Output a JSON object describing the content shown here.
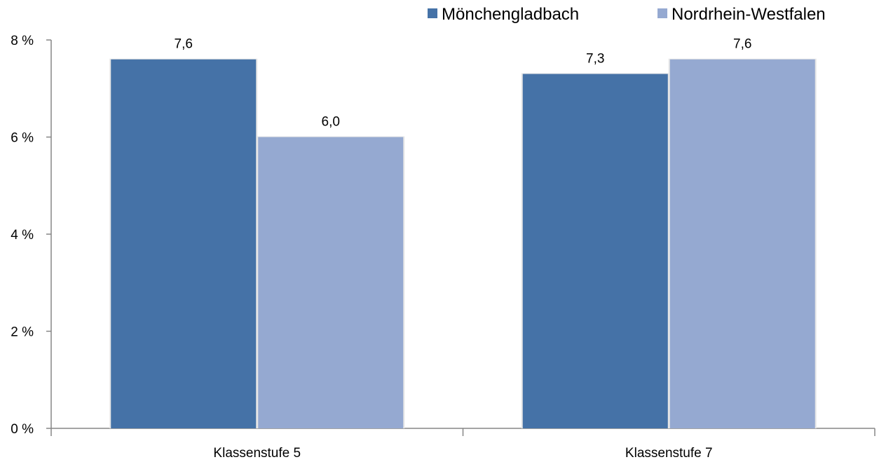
{
  "chart_data": {
    "type": "bar",
    "categories": [
      "Klassenstufe 5",
      "Klassenstufe 7"
    ],
    "series": [
      {
        "name": "Mönchengladbach",
        "values": [
          7.6,
          7.3
        ],
        "labels": [
          "7,6",
          "7,3"
        ],
        "color": "#4572A7"
      },
      {
        "name": "Nordrhein-Westfalen",
        "values": [
          6.0,
          7.6
        ],
        "labels": [
          "6,0",
          "7,6"
        ],
        "color": "#95A9D1"
      }
    ],
    "yticks": [
      0,
      2,
      4,
      6,
      8
    ],
    "ytick_labels": [
      "0 %",
      "2 %",
      "4 %",
      "6 %",
      "8 %"
    ],
    "ylim": [
      0,
      8
    ],
    "legend_position": "top-right",
    "grid": false
  }
}
